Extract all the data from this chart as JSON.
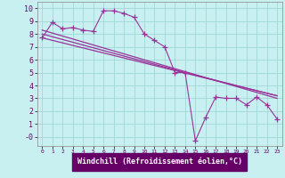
{
  "background_color": "#c8f0f0",
  "grid_color": "#a0d8d8",
  "line_color": "#993399",
  "xlabel": "Windchill (Refroidissement éolien,°C)",
  "xlim": [
    -0.5,
    23.5
  ],
  "ylim": [
    -0.7,
    10.5
  ],
  "yticks": [
    0,
    1,
    2,
    3,
    4,
    5,
    6,
    7,
    8,
    9,
    10
  ],
  "xticks": [
    0,
    1,
    2,
    3,
    4,
    5,
    6,
    7,
    8,
    9,
    10,
    11,
    12,
    13,
    14,
    15,
    16,
    17,
    18,
    19,
    20,
    21,
    22,
    23
  ],
  "series1_x": [
    0,
    1,
    2,
    3,
    4,
    5,
    6,
    7,
    8,
    9,
    10,
    11,
    12,
    13,
    14,
    15,
    16,
    17,
    18,
    19,
    20,
    21,
    22,
    23
  ],
  "series1_y": [
    7.7,
    8.9,
    8.4,
    8.5,
    8.3,
    8.2,
    9.8,
    9.8,
    9.6,
    9.3,
    8.0,
    7.5,
    7.0,
    5.0,
    5.0,
    -0.3,
    1.5,
    3.1,
    3.0,
    3.0,
    2.5,
    3.1,
    2.5,
    1.4
  ],
  "series2_x": [
    0,
    23
  ],
  "series2_y": [
    7.7,
    3.2
  ],
  "series3_x": [
    0,
    23
  ],
  "series3_y": [
    8.3,
    3.0
  ],
  "series4_x": [
    0,
    14,
    23
  ],
  "series4_y": [
    8.0,
    5.0,
    3.2
  ]
}
